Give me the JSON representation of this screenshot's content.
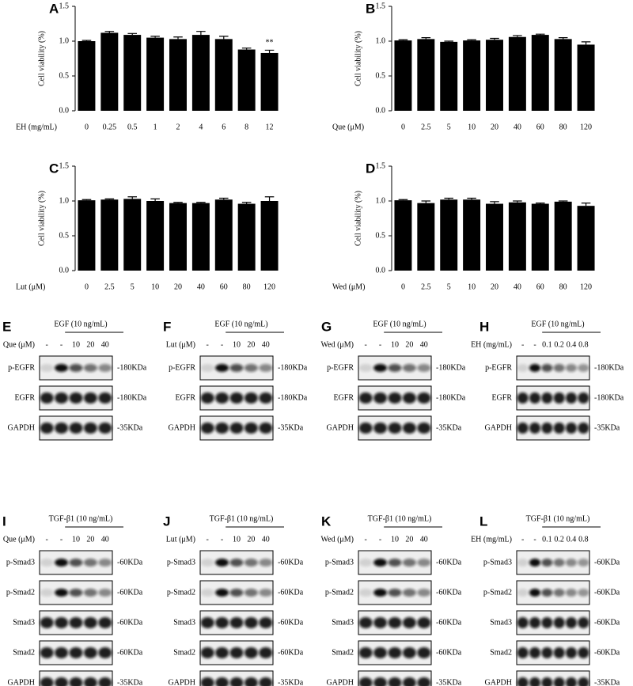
{
  "chart_data": [
    {
      "type": "bar",
      "panel": "A",
      "ylabel": "Cell viability (%)",
      "xlabel": "EH (mg/mL)",
      "color": "#000000",
      "categories": [
        "0",
        "0.25",
        "0.5",
        "1",
        "2",
        "4",
        "6",
        "8",
        "12"
      ],
      "values": [
        1.0,
        1.12,
        1.09,
        1.05,
        1.03,
        1.09,
        1.03,
        0.88,
        0.83
      ],
      "errors": [
        0.01,
        0.02,
        0.02,
        0.02,
        0.03,
        0.05,
        0.04,
        0.02,
        0.04
      ],
      "annotation": "**",
      "ylim": [
        0,
        1.5
      ],
      "yticks": [
        {
          "value": 0,
          "label": "0.0"
        },
        {
          "value": 0.5,
          "label": "0.5"
        },
        {
          "value": 1,
          "label": "1.0"
        },
        {
          "value": 1.5,
          "label": "1.5"
        }
      ]
    },
    {
      "type": "bar",
      "panel": "B",
      "ylabel": "Cell viability (%)",
      "xlabel": "Que (μM)",
      "color": "#000000",
      "categories": [
        "0",
        "2.5",
        "5",
        "10",
        "20",
        "40",
        "60",
        "80",
        "120"
      ],
      "values": [
        1.01,
        1.03,
        0.99,
        1.01,
        1.02,
        1.06,
        1.09,
        1.03,
        0.95
      ],
      "errors": [
        0.01,
        0.02,
        0.01,
        0.01,
        0.02,
        0.02,
        0.01,
        0.02,
        0.04
      ],
      "ylim": [
        0,
        1.5
      ],
      "yticks": [
        {
          "value": 0,
          "label": "0.0"
        },
        {
          "value": 0.5,
          "label": "0.5"
        },
        {
          "value": 1,
          "label": "1.0"
        },
        {
          "value": 1.5,
          "label": "1.5"
        }
      ]
    },
    {
      "type": "bar",
      "panel": "C",
      "ylabel": "Cell viability (%)",
      "xlabel": "Lut (μM)",
      "color": "#000000",
      "categories": [
        "0",
        "2.5",
        "5",
        "10",
        "20",
        "40",
        "60",
        "80",
        "120"
      ],
      "values": [
        1.01,
        1.02,
        1.03,
        1.0,
        0.97,
        0.97,
        1.02,
        0.96,
        1.0
      ],
      "errors": [
        0.01,
        0.01,
        0.03,
        0.03,
        0.01,
        0.01,
        0.02,
        0.02,
        0.06
      ],
      "ylim": [
        0,
        1.5
      ],
      "yticks": [
        {
          "value": 0,
          "label": "0.0"
        },
        {
          "value": 0.5,
          "label": "0.5"
        },
        {
          "value": 1,
          "label": "1.0"
        },
        {
          "value": 1.5,
          "label": "1.5"
        }
      ]
    },
    {
      "type": "bar",
      "panel": "D",
      "ylabel": "Cell viability (%)",
      "xlabel": "Wed (μM)",
      "color": "#000000",
      "categories": [
        "0",
        "2.5",
        "5",
        "10",
        "20",
        "40",
        "60",
        "80",
        "120"
      ],
      "values": [
        1.01,
        0.97,
        1.02,
        1.02,
        0.96,
        0.98,
        0.96,
        0.99,
        0.93
      ],
      "errors": [
        0.01,
        0.03,
        0.02,
        0.02,
        0.03,
        0.02,
        0.01,
        0.01,
        0.04
      ],
      "ylim": [
        0,
        1.5
      ],
      "yticks": [
        {
          "value": 0,
          "label": "0.0"
        },
        {
          "value": 0.5,
          "label": "0.5"
        },
        {
          "value": 1,
          "label": "1.0"
        },
        {
          "value": 1.5,
          "label": "1.5"
        }
      ]
    }
  ],
  "blots": [
    {
      "panel": "E",
      "treatment": "EGF (10 ng/mL)",
      "dose_label": "Que (μM)",
      "lanes": [
        "-",
        "-",
        "10",
        "20",
        "40"
      ],
      "rows": [
        {
          "name": "p-EGFR",
          "size": "-180KDa"
        },
        {
          "name": "EGFR",
          "size": "-180KDa"
        },
        {
          "name": "GAPDH",
          "size": "-35KDa"
        }
      ]
    },
    {
      "panel": "F",
      "treatment": "EGF (10 ng/mL)",
      "dose_label": "Lut (μM)",
      "lanes": [
        "-",
        "-",
        "10",
        "20",
        "40"
      ],
      "rows": [
        {
          "name": "p-EGFR",
          "size": "-180KDa"
        },
        {
          "name": "EGFR",
          "size": "-180KDa"
        },
        {
          "name": "GAPDH",
          "size": "-35KDa"
        }
      ]
    },
    {
      "panel": "G",
      "treatment": "EGF (10 ng/mL)",
      "dose_label": "Wed (μM)",
      "lanes": [
        "-",
        "-",
        "10",
        "20",
        "40"
      ],
      "rows": [
        {
          "name": "p-EGFR",
          "size": "-180KDa"
        },
        {
          "name": "EGFR",
          "size": "-180KDa"
        },
        {
          "name": "GAPDH",
          "size": "-35KDa"
        }
      ]
    },
    {
      "panel": "H",
      "treatment": "EGF (10 ng/mL)",
      "dose_label": "EH (mg/mL)",
      "lanes": [
        "-",
        "-",
        "0.1",
        "0.2",
        "0.4",
        "0.8"
      ],
      "rows": [
        {
          "name": "p-EGFR",
          "size": "-180KDa"
        },
        {
          "name": "EGFR",
          "size": "-180KDa"
        },
        {
          "name": "GAPDH",
          "size": "-35KDa"
        }
      ]
    },
    {
      "panel": "I",
      "treatment": "TGF-β1 (10 ng/mL)",
      "dose_label": "Que (μM)",
      "lanes": [
        "-",
        "-",
        "10",
        "20",
        "40"
      ],
      "rows": [
        {
          "name": "p-Smad3",
          "size": "-60KDa"
        },
        {
          "name": "p-Smad2",
          "size": "-60KDa"
        },
        {
          "name": "Smad3",
          "size": "-60KDa"
        },
        {
          "name": "Smad2",
          "size": "-60KDa"
        },
        {
          "name": "GAPDH",
          "size": "-35KDa"
        }
      ]
    },
    {
      "panel": "J",
      "treatment": "TGF-β1 (10 ng/mL)",
      "dose_label": "Lut (μM)",
      "lanes": [
        "-",
        "-",
        "10",
        "20",
        "40"
      ],
      "rows": [
        {
          "name": "p-Smad3",
          "size": "-60KDa"
        },
        {
          "name": "p-Smad2",
          "size": "-60KDa"
        },
        {
          "name": "Smad3",
          "size": "-60KDa"
        },
        {
          "name": "Smad2",
          "size": "-60KDa"
        },
        {
          "name": "GAPDH",
          "size": "-35KDa"
        }
      ]
    },
    {
      "panel": "K",
      "treatment": "TGF-β1 (10 ng/mL)",
      "dose_label": "Wed (μM)",
      "lanes": [
        "-",
        "-",
        "10",
        "20",
        "40"
      ],
      "rows": [
        {
          "name": "p-Smad3",
          "size": "-60KDa"
        },
        {
          "name": "p-Smad2",
          "size": "-60KDa"
        },
        {
          "name": "Smad3",
          "size": "-60KDa"
        },
        {
          "name": "Smad2",
          "size": "-60KDa"
        },
        {
          "name": "GAPDH",
          "size": "-35KDa"
        }
      ]
    },
    {
      "panel": "L",
      "treatment": "TGF-β1 (10 ng/mL)",
      "dose_label": "EH (mg/mL)",
      "lanes": [
        "-",
        "-",
        "0.1",
        "0.2",
        "0.4",
        "0.8"
      ],
      "rows": [
        {
          "name": "p-Smad3",
          "size": "-60KDa"
        },
        {
          "name": "p-Smad2",
          "size": "-60KDa"
        },
        {
          "name": "Smad3",
          "size": "-60KDa"
        },
        {
          "name": "Smad2",
          "size": "-60KDa"
        },
        {
          "name": "GAPDH",
          "size": "-35KDa"
        }
      ]
    }
  ]
}
